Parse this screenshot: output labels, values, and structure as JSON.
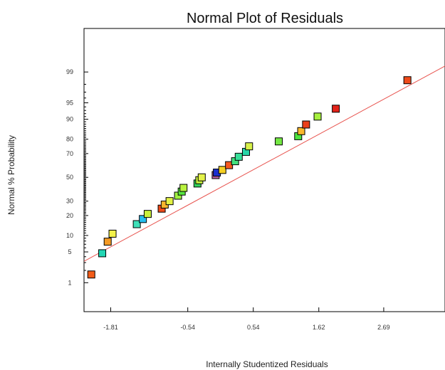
{
  "chart_data": {
    "type": "scatter",
    "title": "Normal Plot of Residuals",
    "xlabel": "Internally Studentized Residuals",
    "ylabel": "Normal % Probability",
    "xlim": [
      -2.25,
      3.7
    ],
    "x_ticks": [
      {
        "value": -1.81,
        "label": "-1.81"
      },
      {
        "value": -0.54,
        "label": "-0.54"
      },
      {
        "value": 0.54,
        "label": "0.54"
      },
      {
        "value": 1.62,
        "label": "1.62"
      },
      {
        "value": 2.69,
        "label": "2.69"
      }
    ],
    "y_scale": "normal-probability",
    "ylim_percent": [
      0.15,
      99.95
    ],
    "y_ticks": [
      {
        "value": 1,
        "label": "1"
      },
      {
        "value": 5,
        "label": "5"
      },
      {
        "value": 10,
        "label": "10"
      },
      {
        "value": 20,
        "label": "20"
      },
      {
        "value": 30,
        "label": "30"
      },
      {
        "value": 50,
        "label": "50"
      },
      {
        "value": 70,
        "label": "70"
      },
      {
        "value": 80,
        "label": "80"
      },
      {
        "value": 90,
        "label": "90"
      },
      {
        "value": 95,
        "label": "95"
      },
      {
        "value": 99,
        "label": "99"
      }
    ],
    "grid": false,
    "reference_line": {
      "color": "#e8534e",
      "points": [
        [
          -2.25,
          3.2
        ],
        [
          3.7,
          99.3
        ]
      ]
    },
    "points": [
      {
        "x": -2.13,
        "y": 1.6,
        "color": "#f25c19"
      },
      {
        "x": -1.95,
        "y": 4.7,
        "color": "#23d6b4"
      },
      {
        "x": -1.86,
        "y": 7.8,
        "color": "#f59a23"
      },
      {
        "x": -1.78,
        "y": 10.7,
        "color": "#f3f24a"
      },
      {
        "x": -1.38,
        "y": 15.1,
        "color": "#3fe0b8"
      },
      {
        "x": -1.28,
        "y": 17.9,
        "color": "#27bdef"
      },
      {
        "x": -1.2,
        "y": 21.0,
        "color": "#c9f03c"
      },
      {
        "x": -0.97,
        "y": 24.5,
        "color": "#ee4a1a"
      },
      {
        "x": -0.92,
        "y": 27.4,
        "color": "#f7b52c"
      },
      {
        "x": -0.84,
        "y": 30.0,
        "color": "#e3f245"
      },
      {
        "x": -0.7,
        "y": 34.3,
        "color": "#9ff041"
      },
      {
        "x": -0.64,
        "y": 37.7,
        "color": "#57e63f"
      },
      {
        "x": -0.61,
        "y": 40.8,
        "color": "#b9f23f"
      },
      {
        "x": -0.38,
        "y": 44.6,
        "color": "#31d35a"
      },
      {
        "x": -0.35,
        "y": 47.5,
        "color": "#c9f23e"
      },
      {
        "x": -0.31,
        "y": 50.0,
        "color": "#e3f24a"
      },
      {
        "x": -0.08,
        "y": 52.0,
        "color": "#b05c9e"
      },
      {
        "x": -0.06,
        "y": 54.2,
        "color": "#1a2fcf"
      },
      {
        "x": 0.03,
        "y": 56.5,
        "color": "#f5d023"
      },
      {
        "x": 0.14,
        "y": 60.6,
        "color": "#f5581e"
      },
      {
        "x": 0.24,
        "y": 63.9,
        "color": "#43e07c"
      },
      {
        "x": 0.3,
        "y": 67.5,
        "color": "#37e09a"
      },
      {
        "x": 0.42,
        "y": 71.3,
        "color": "#27d6a8"
      },
      {
        "x": 0.47,
        "y": 75.3,
        "color": "#d8f24a"
      },
      {
        "x": 0.96,
        "y": 78.6,
        "color": "#74e843"
      },
      {
        "x": 1.28,
        "y": 81.8,
        "color": "#4ee43f"
      },
      {
        "x": 1.33,
        "y": 84.6,
        "color": "#f9b82d"
      },
      {
        "x": 1.41,
        "y": 87.8,
        "color": "#ea3f1a"
      },
      {
        "x": 1.6,
        "y": 91.0,
        "color": "#a6f03e"
      },
      {
        "x": 1.9,
        "y": 93.5,
        "color": "#e3231a"
      },
      {
        "x": 3.08,
        "y": 98.4,
        "color": "#ef4a1a"
      }
    ]
  }
}
